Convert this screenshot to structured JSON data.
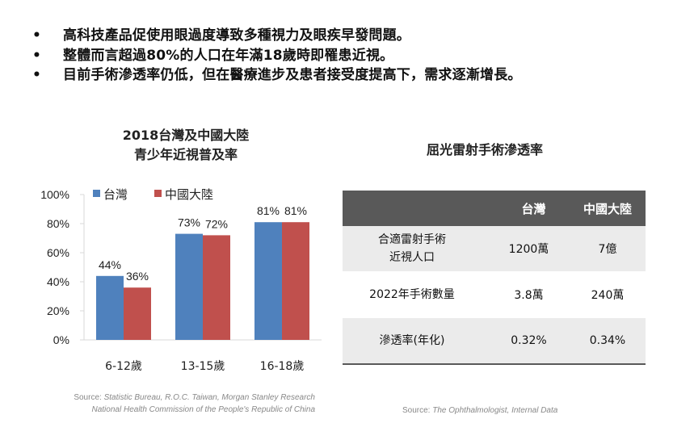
{
  "bullets": [
    "高科技產品促使用眼過度導致多種視力及眼疾早發問題。",
    "整體而言超過80%的人口在年滿18歲時即罹患近視。",
    "目前手術滲透率仍低，但在醫療進步及患者接受度提高下，需求逐漸增長。"
  ],
  "chart_title": {
    "line1": "2018台灣及中國大陸",
    "line2": "青少年近視普及率"
  },
  "chart_data": {
    "type": "bar",
    "categories": [
      "6-12歲",
      "13-15歲",
      "16-18歲"
    ],
    "series": [
      {
        "name": "台灣",
        "values": [
          44,
          73,
          81
        ],
        "labels": [
          "44%",
          "73%",
          "81%"
        ],
        "color": "#4f81bd"
      },
      {
        "name": "中國大陸",
        "values": [
          36,
          72,
          81
        ],
        "labels": [
          "36%",
          "72%",
          "81%"
        ],
        "color": "#c0504d"
      }
    ],
    "title": "2018台灣及中國大陸 青少年近視普及率",
    "xlabel": "",
    "ylabel": "",
    "ylim": [
      0,
      100
    ],
    "yticks": [
      0,
      20,
      40,
      60,
      80,
      100
    ],
    "ytick_labels": [
      "0%",
      "20%",
      "40%",
      "60%",
      "80%",
      "100%"
    ],
    "grid": false,
    "legend_position": "top-left"
  },
  "source_left": {
    "line1_prefix": "Source: ",
    "line1_text": "Statistic Bureau, R.O.C. Taiwan, Morgan Stanley Research",
    "line2_text": "National Health Commission of the People's Republic of China"
  },
  "table": {
    "title": "屈光雷射手術滲透率",
    "headers": [
      "",
      "台灣",
      "中國大陸"
    ],
    "rows": [
      {
        "label_line1": "合適雷射手術",
        "label_line2": "近視人口",
        "taiwan": "1200萬",
        "china": "7億"
      },
      {
        "label_line1": "2022年手術數量",
        "label_line2": "",
        "taiwan": "3.8萬",
        "china": "240萬"
      },
      {
        "label_line1": "滲透率(年化)",
        "label_line2": "",
        "taiwan": "0.32%",
        "china": "0.34%"
      }
    ],
    "header_color": "#595959",
    "stripe_color": "#ebebeb"
  },
  "source_right": {
    "prefix": "Source: ",
    "text": "The Ophthalmologist, Internal Data"
  }
}
